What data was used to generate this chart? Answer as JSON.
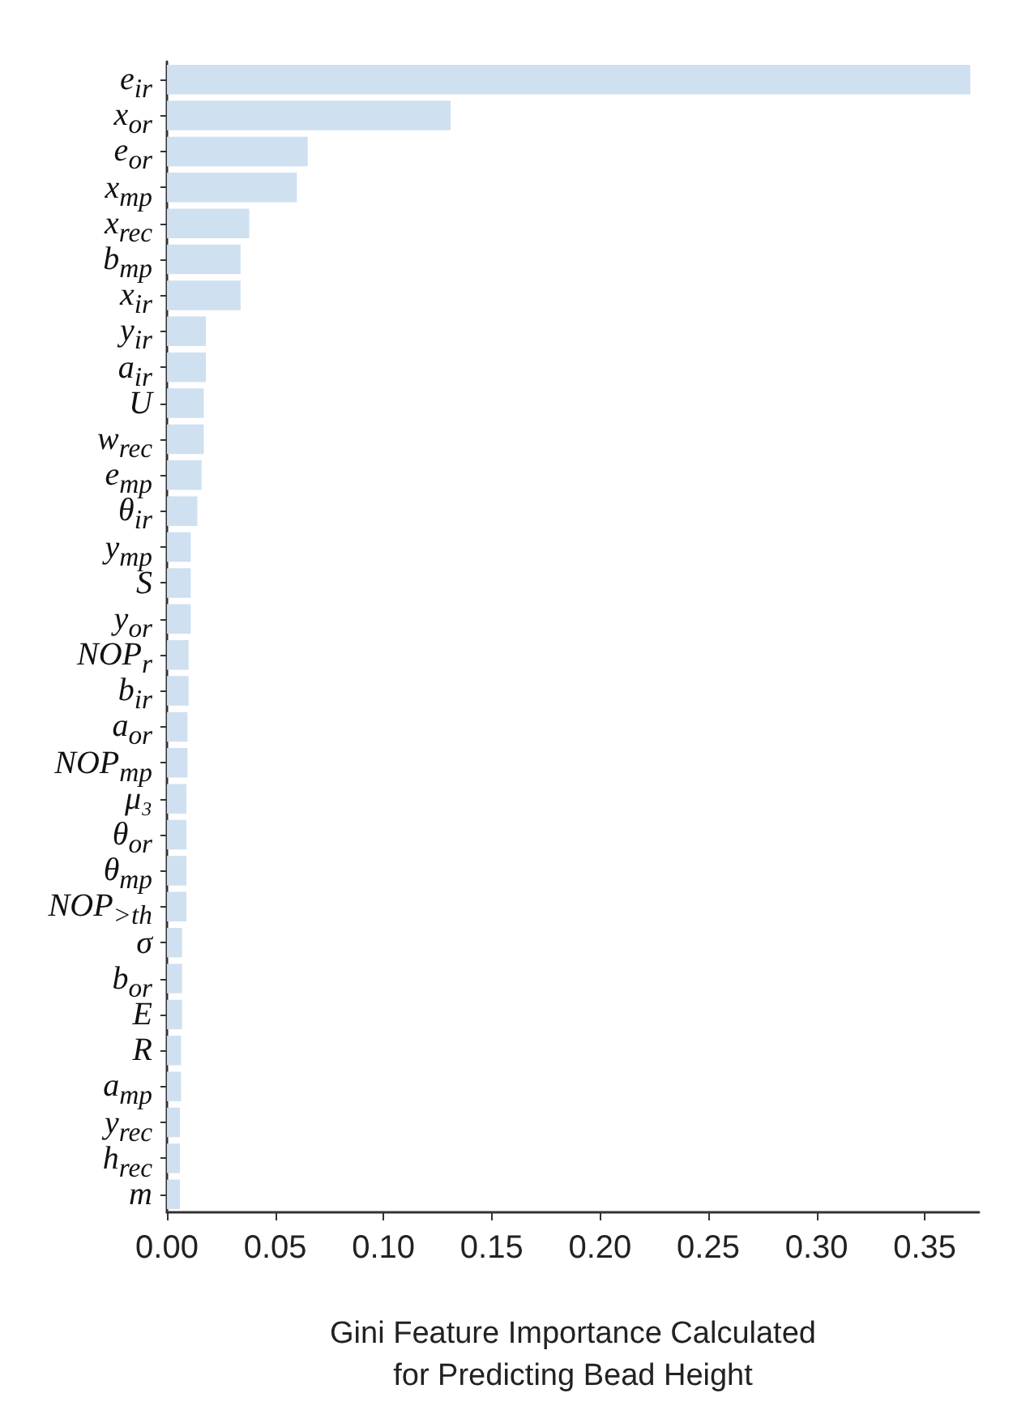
{
  "chart_data": {
    "type": "bar",
    "orientation": "horizontal",
    "xlabel": "Gini Feature Importance Calculated for Predicting Bead Height",
    "categories": [
      "e$_{ir}$",
      "x$_{or}$",
      "e$_{or}$",
      "x$_{mp}$",
      "x$_{rec}$",
      "b$_{mp}$",
      "x$_{ir}$",
      "y$_{ir}$",
      "a$_{ir}$",
      "U",
      "w$_{rec}$",
      "e$_{mp}$",
      "θ$_{ir}$",
      "y$_{mp}$",
      "S",
      "y$_{or}$",
      "NOP$_{r}$",
      "b$_{ir}$",
      "a$_{or}$",
      "NOP$_{mp}$",
      "μ₃",
      "θ$_{or}$",
      "θ$_{mp}$",
      "NOP$_{>th}$",
      "σ",
      "b$_{or}$",
      "E",
      "R",
      "a$_{mp}$",
      "y$_{rec}$",
      "h$_{rec}$",
      "m"
    ],
    "values": [
      0.371,
      0.131,
      0.065,
      0.06,
      0.038,
      0.034,
      0.034,
      0.018,
      0.018,
      0.017,
      0.017,
      0.016,
      0.014,
      0.011,
      0.011,
      0.011,
      0.01,
      0.01,
      0.0095,
      0.0095,
      0.009,
      0.009,
      0.009,
      0.009,
      0.007,
      0.007,
      0.007,
      0.0065,
      0.0065,
      0.006,
      0.006,
      0.006
    ],
    "color": "#cfe0f0",
    "xlim": [
      0,
      0.375
    ],
    "xticks": [
      {
        "value": 0,
        "label": "0.00"
      },
      {
        "value": 0.05,
        "label": "0.05"
      },
      {
        "value": 0.1,
        "label": "0.10"
      },
      {
        "value": 0.15,
        "label": "0.15"
      },
      {
        "value": 0.2,
        "label": "0.20"
      },
      {
        "value": 0.25,
        "label": "0.25"
      },
      {
        "value": 0.3,
        "label": "0.30"
      },
      {
        "value": 0.35,
        "label": "0.35"
      }
    ],
    "grid": false
  }
}
